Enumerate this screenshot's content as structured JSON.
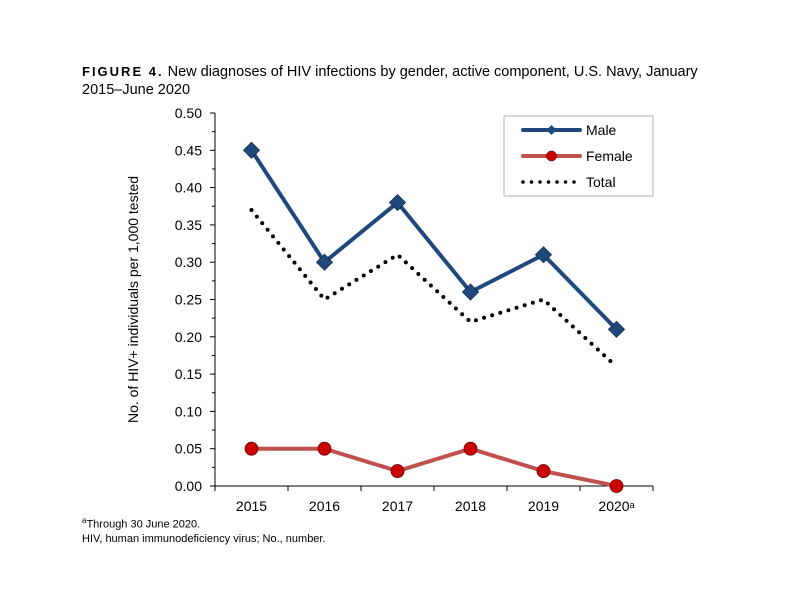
{
  "figure": {
    "label": "FIGURE 4.",
    "title": "New diagnoses of HIV infections by gender, active component, U.S. Navy, January 2015–June 2020"
  },
  "footnotes": {
    "a_marker": "a",
    "a_text": "Through 30 June 2020.",
    "abbrev": "HIV, human immunodeficiency virus; No., number."
  },
  "chart_data": {
    "type": "line",
    "title": "New diagnoses of HIV infections by gender, active component, U.S. Navy, January 2015–June 2020",
    "xlabel": "",
    "ylabel": "No. of HIV+ individuals per 1,000 tested",
    "categories": [
      "2015",
      "2016",
      "2017",
      "2018",
      "2019",
      "2020"
    ],
    "category_superscripts": [
      "",
      "",
      "",
      "",
      "",
      "a"
    ],
    "ylim": [
      0,
      0.5
    ],
    "yticks": [
      "0.00",
      "0.05",
      "0.10",
      "0.15",
      "0.20",
      "0.25",
      "0.30",
      "0.35",
      "0.40",
      "0.45",
      "0.50"
    ],
    "grid": false,
    "legend_position": "top-right",
    "series": [
      {
        "name": "Male",
        "values": [
          0.45,
          0.3,
          0.38,
          0.26,
          0.31,
          0.21
        ],
        "color": "#1f497d",
        "marker": "diamond",
        "style": "solid"
      },
      {
        "name": "Female",
        "values": [
          0.05,
          0.05,
          0.02,
          0.05,
          0.02,
          0.0
        ],
        "color": "#c0504d",
        "marker_color": "#cc0000",
        "marker": "circle",
        "style": "solid"
      },
      {
        "name": "Total",
        "values": [
          0.37,
          0.25,
          0.31,
          0.22,
          0.25,
          0.16
        ],
        "color": "#000000",
        "marker": "none",
        "style": "dotted"
      }
    ]
  }
}
